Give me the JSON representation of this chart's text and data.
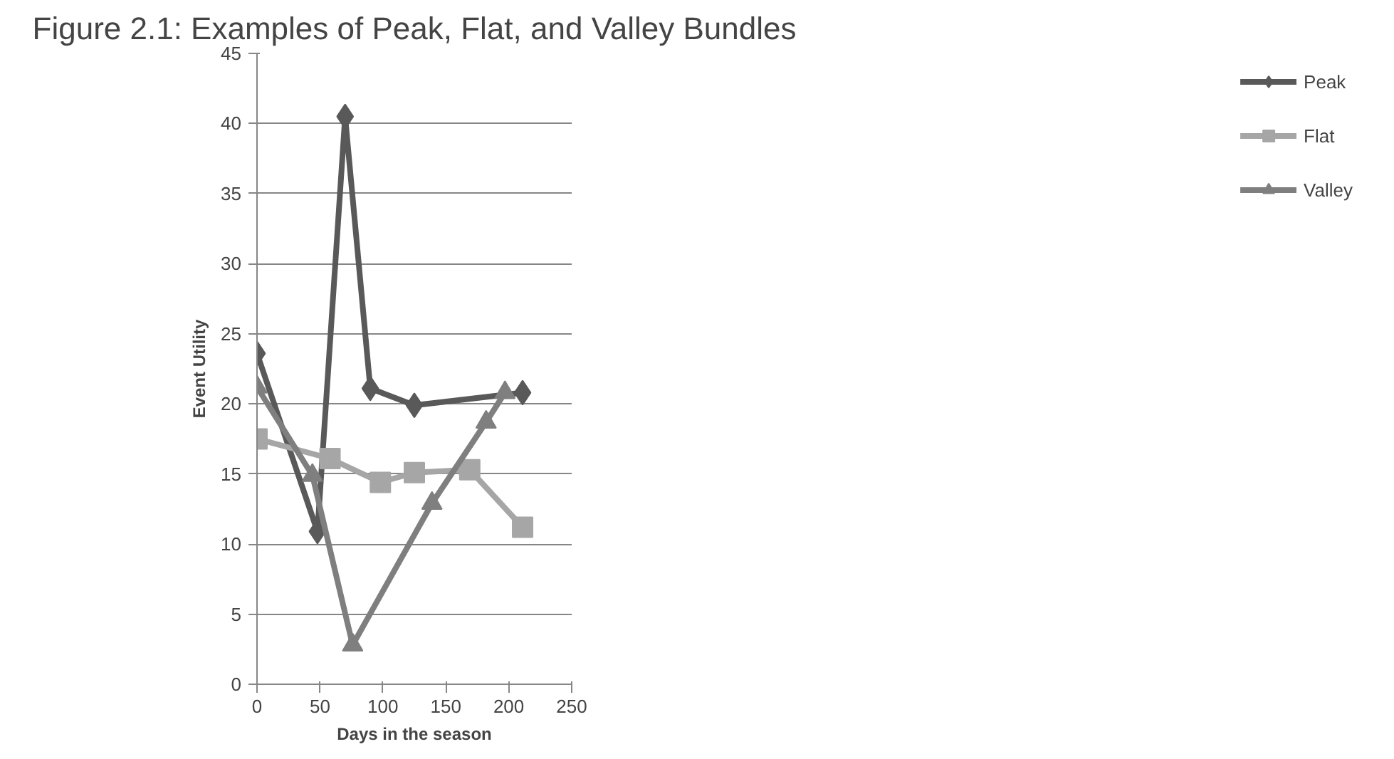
{
  "chart_data": {
    "type": "line",
    "title": "Figure 2.1: Examples of Peak, Flat, and Valley Bundles",
    "xlabel": "Days in the season",
    "ylabel": "Event Utility",
    "xlim": [
      0,
      250
    ],
    "xticks": [
      0,
      50,
      100,
      150,
      200,
      250
    ],
    "ylim": [
      0,
      45
    ],
    "yticks": [
      0,
      5,
      10,
      15,
      20,
      25,
      30,
      35,
      40,
      45
    ],
    "grid": "y",
    "legend": "right",
    "series": [
      {
        "name": "Peak",
        "color": "#595959",
        "marker": "diamond",
        "x": [
          0,
          48,
          70,
          90,
          125,
          211
        ],
        "values": [
          23.6,
          10.9,
          40.5,
          21.1,
          19.9,
          20.8
        ]
      },
      {
        "name": "Flat",
        "color": "#a6a6a6",
        "marker": "square",
        "x": [
          0,
          58,
          98,
          125,
          169,
          211
        ],
        "values": [
          17.5,
          16.1,
          14.4,
          15.1,
          15.3,
          11.2
        ]
      },
      {
        "name": "Valley",
        "color": "#7f7f7f",
        "marker": "triangle",
        "x": [
          0,
          44,
          76,
          139,
          182,
          197
        ],
        "values": [
          21.2,
          14.9,
          2.8,
          12.9,
          18.7,
          20.8
        ]
      }
    ]
  }
}
